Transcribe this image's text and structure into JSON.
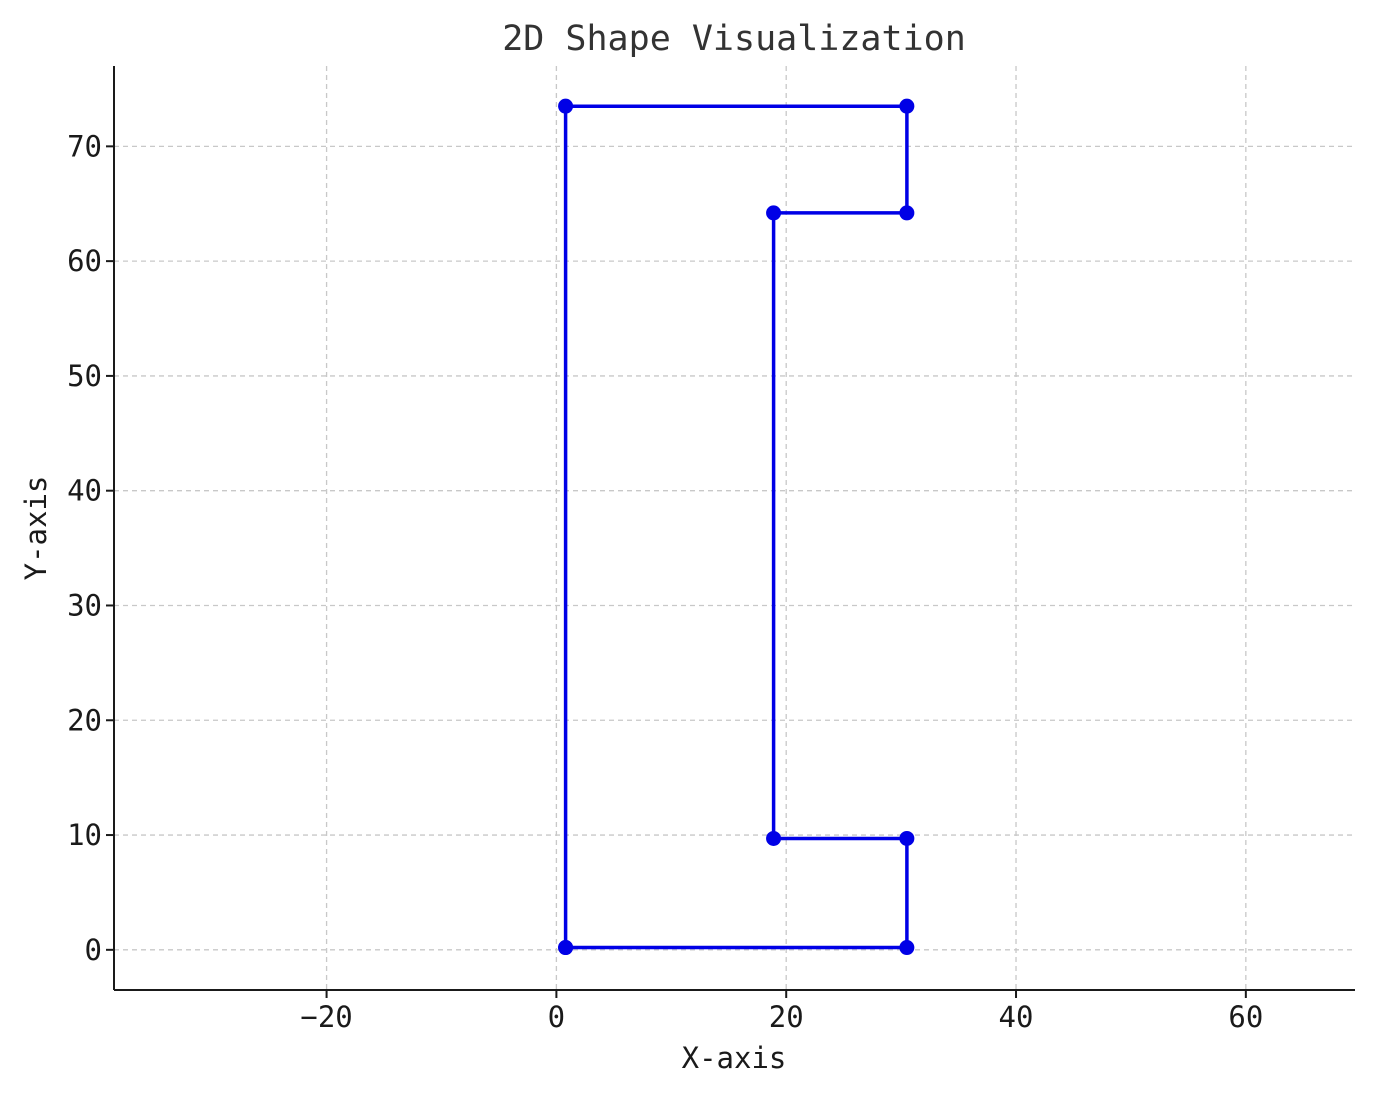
{
  "chart_data": {
    "type": "line",
    "title": "2D Shape Visualization",
    "xlabel": "X-axis",
    "ylabel": "Y-axis",
    "xlim": [
      -38.5,
      69.5
    ],
    "ylim": [
      -3.5,
      77
    ],
    "xticks": [
      -20,
      0,
      20,
      40,
      60
    ],
    "yticks": [
      0,
      10,
      20,
      30,
      40,
      50,
      60,
      70
    ],
    "xtick_labels": [
      "−20",
      "0",
      "20",
      "40",
      "60"
    ],
    "ytick_labels": [
      "0",
      "10",
      "20",
      "30",
      "40",
      "50",
      "60",
      "70"
    ],
    "grid": true,
    "line_color": "#0000e6",
    "series": [
      {
        "x": [
          0.8,
          30.5,
          30.5,
          18.9,
          18.9,
          30.5,
          30.5,
          0.8,
          0.8
        ],
        "y": [
          0.2,
          0.2,
          9.7,
          9.7,
          64.2,
          64.2,
          73.5,
          73.5,
          0.2
        ]
      }
    ]
  }
}
